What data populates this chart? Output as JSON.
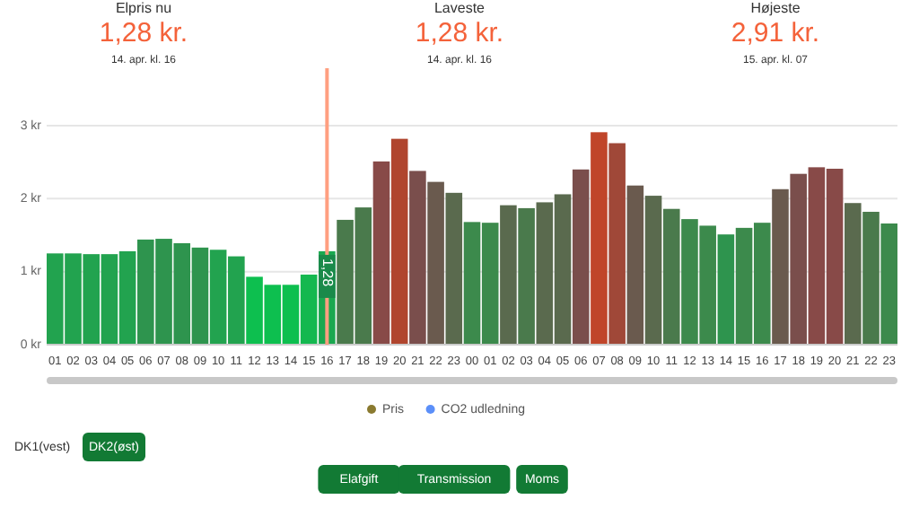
{
  "chart_data": {
    "type": "bar",
    "categories": [
      "01",
      "02",
      "03",
      "04",
      "05",
      "06",
      "07",
      "08",
      "09",
      "10",
      "11",
      "12",
      "13",
      "14",
      "15",
      "16",
      "17",
      "18",
      "19",
      "20",
      "21",
      "22",
      "23",
      "00",
      "01",
      "02",
      "03",
      "04",
      "05",
      "06",
      "07",
      "08",
      "09",
      "10",
      "11",
      "12",
      "13",
      "14",
      "15",
      "16",
      "17",
      "18",
      "19",
      "20",
      "21",
      "22",
      "23"
    ],
    "series": [
      {
        "name": "Pris",
        "color": "#8a7a30",
        "values": [
          1.25,
          1.25,
          1.24,
          1.24,
          1.28,
          1.44,
          1.45,
          1.39,
          1.33,
          1.3,
          1.21,
          0.93,
          0.82,
          0.82,
          0.96,
          1.28,
          1.71,
          1.88,
          2.51,
          2.82,
          2.38,
          2.23,
          2.08,
          1.68,
          1.67,
          1.91,
          1.87,
          1.95,
          2.06,
          2.4,
          2.91,
          2.76,
          2.18,
          2.04,
          1.86,
          1.72,
          1.63,
          1.51,
          1.6,
          1.67,
          2.13,
          2.34,
          2.43,
          2.41,
          1.94,
          1.82,
          1.66
        ],
        "colors": [
          "#22a34f",
          "#22a34f",
          "#22a34f",
          "#22a34f",
          "#22a34f",
          "#2e944e",
          "#2e944e",
          "#2e944e",
          "#2e944e",
          "#22a34f",
          "#22a34f",
          "#0dbf4f",
          "#0dbf4f",
          "#0dbf4f",
          "#14b84f",
          "#1aa84f",
          "#4a7a4c",
          "#4a7a4c",
          "#884a48",
          "#b0452e",
          "#7a4e4c",
          "#6a5a4e",
          "#5a6a4e",
          "#3c8a4c",
          "#3c8a4c",
          "#5a6a4e",
          "#4a7a4c",
          "#5a6a4e",
          "#5a6a4e",
          "#7a4e4c",
          "#c0452a",
          "#a04838",
          "#6a5a4e",
          "#5a6a4e",
          "#4a7a4c",
          "#3c8a4c",
          "#3c8a4c",
          "#2e944e",
          "#3c8a4c",
          "#3c8a4c",
          "#6a5a4e",
          "#7a4e4c",
          "#884a48",
          "#884a48",
          "#5a6a4e",
          "#4a7a4c",
          "#3c8a4c"
        ],
        "value_labels": [
          null,
          null,
          null,
          null,
          null,
          null,
          null,
          null,
          null,
          null,
          null,
          null,
          null,
          null,
          null,
          "1,28",
          null,
          null,
          null,
          null,
          null,
          null,
          null,
          null,
          null,
          null,
          null,
          null,
          null,
          null,
          null,
          null,
          null,
          null,
          null,
          null,
          null,
          null,
          null,
          null,
          null,
          null,
          null,
          null,
          null,
          null,
          null
        ]
      },
      {
        "name": "CO2 udledning",
        "color": "#5b8ff9",
        "values": [
          null,
          null,
          null,
          null,
          null,
          null,
          null,
          null,
          null,
          null,
          null,
          null,
          null,
          null,
          null,
          null,
          null,
          null,
          null,
          null,
          null,
          null,
          null,
          null,
          null,
          null,
          null,
          null,
          null,
          null,
          null,
          null,
          null,
          null,
          null,
          null,
          null,
          null,
          null,
          null,
          null,
          null,
          null,
          null,
          null,
          null,
          null
        ]
      }
    ],
    "ylim": [
      0,
      3
    ],
    "yticks": [
      {
        "value": 0,
        "label": "0 kr"
      },
      {
        "value": 1,
        "label": "1 kr"
      },
      {
        "value": 2,
        "label": "2 kr"
      },
      {
        "value": 3,
        "label": "3 kr"
      }
    ],
    "grid": "y",
    "legend": "bottom",
    "ref_lines": [
      {
        "axis": "x",
        "value": "16",
        "color": "#ff9f80"
      }
    ],
    "annotations": [
      "Elpris nu",
      "1,28 kr.",
      "14. apr. kl. 16",
      "Laveste",
      "1,28 kr.",
      "14. apr. kl. 16",
      "Højeste",
      "2,91 kr.",
      "15. apr. kl. 07",
      "DK1(vest)",
      "DK2(øst)",
      "Elafgift",
      "Transmission",
      "Moms"
    ]
  }
}
